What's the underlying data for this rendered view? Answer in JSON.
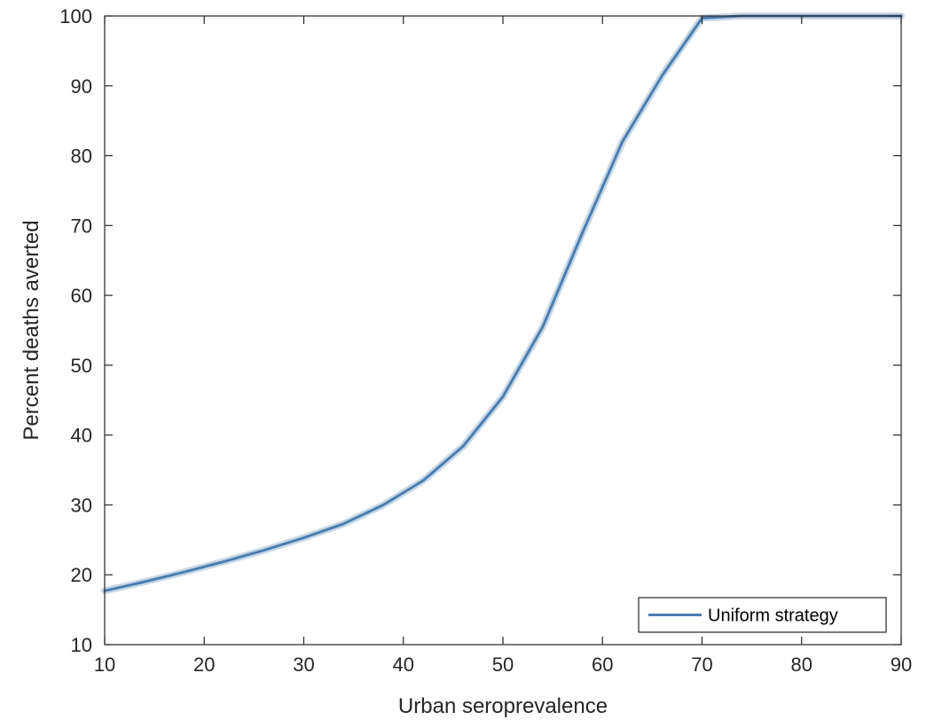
{
  "chart_data": {
    "type": "line",
    "xlabel": "Urban seroprevalence",
    "ylabel": "Percent deaths averted",
    "xlim": [
      10,
      90
    ],
    "ylim": [
      10,
      100
    ],
    "xticks": [
      10,
      20,
      30,
      40,
      50,
      60,
      70,
      80,
      90
    ],
    "yticks": [
      10,
      20,
      30,
      40,
      50,
      60,
      70,
      80,
      90,
      100
    ],
    "grid": false,
    "legend_position": "bottom-right",
    "series": [
      {
        "name": "Uniform strategy",
        "color": "#4a7eb0",
        "x": [
          10,
          14,
          18,
          22,
          26,
          30,
          34,
          38,
          42,
          46,
          50,
          54,
          58,
          62,
          66,
          70,
          74,
          78,
          82,
          86,
          90
        ],
        "y": [
          17.7,
          19.0,
          20.4,
          21.9,
          23.5,
          25.3,
          27.3,
          30.0,
          33.5,
          38.4,
          45.5,
          55.5,
          69.0,
          82.0,
          91.5,
          99.7,
          100,
          100,
          100,
          100,
          100
        ]
      }
    ]
  }
}
